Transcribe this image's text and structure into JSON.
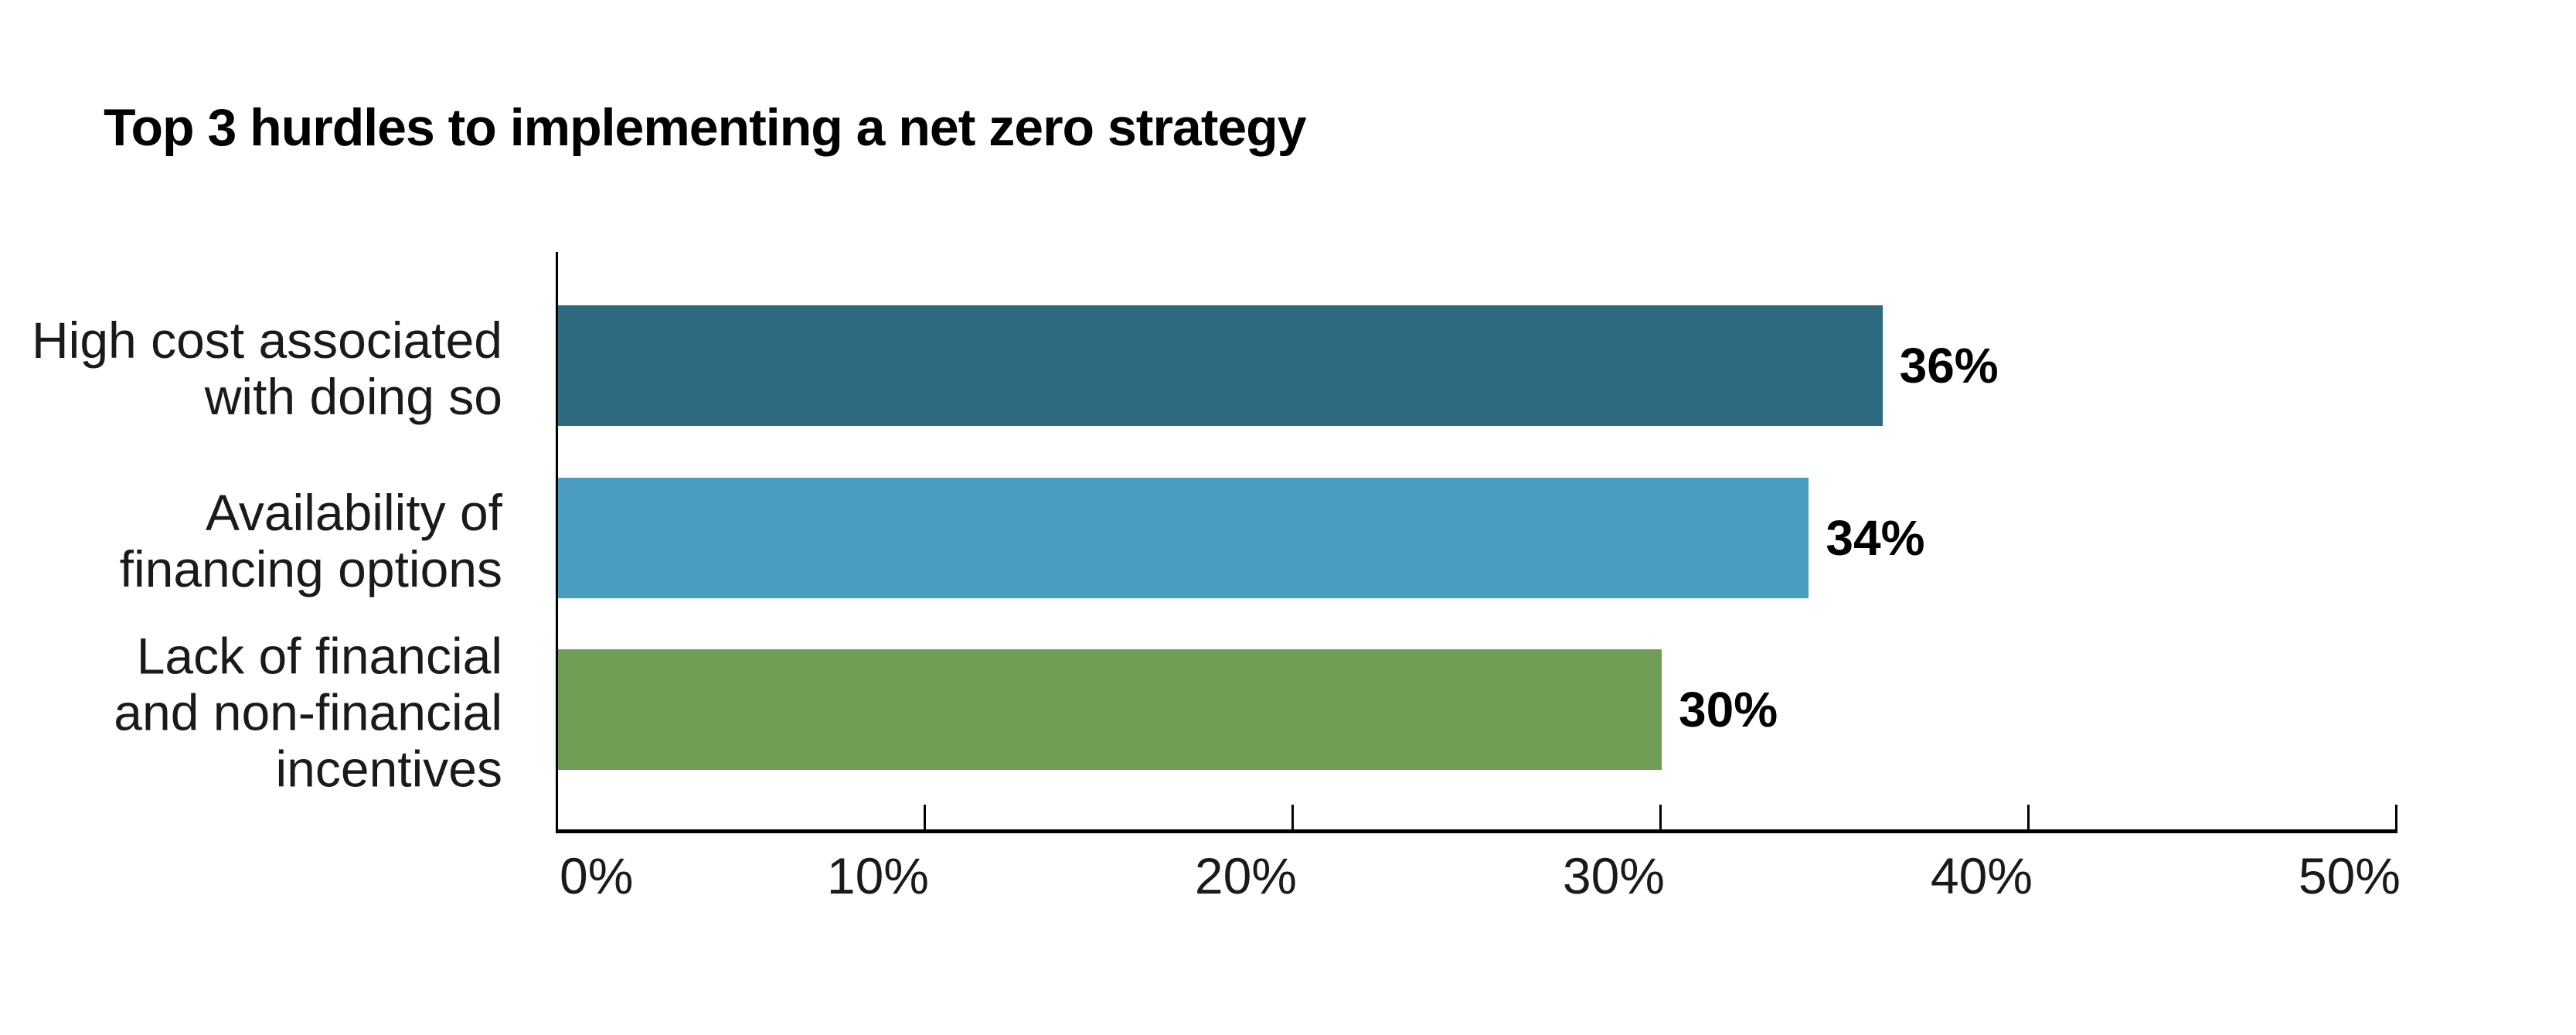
{
  "page": {
    "background": "#FFFFFF"
  },
  "chart_data": {
    "type": "bar",
    "orientation": "horizontal",
    "title": "Top 3 hurdles to implementing a net zero strategy",
    "categories": [
      "High cost associated with doing so",
      "Availability of financing options",
      "Lack of financial and non-financial incentives"
    ],
    "category_label_lines": [
      [
        "High cost associated",
        "with doing so"
      ],
      [
        "Availability of",
        "financing options"
      ],
      [
        "Lack of financial",
        "and non-financial",
        "incentives"
      ]
    ],
    "values": [
      36,
      34,
      30
    ],
    "value_labels": [
      "36%",
      "34%",
      "30%"
    ],
    "bar_colors": [
      "#2E6A80",
      "#4A9CC0",
      "#6F9E54"
    ],
    "x_ticks": [
      {
        "value": 0,
        "label": "0%"
      },
      {
        "value": 10,
        "label": "10%"
      },
      {
        "value": 20,
        "label": "20%"
      },
      {
        "value": 30,
        "label": "30%"
      },
      {
        "value": 40,
        "label": "40%"
      },
      {
        "value": 50,
        "label": "50%"
      }
    ],
    "xlim": [
      0,
      50
    ],
    "xlabel": "",
    "ylabel": "",
    "grid": false,
    "legend": false,
    "axis_color": "#000000",
    "text_color": "#1A1A1A"
  }
}
